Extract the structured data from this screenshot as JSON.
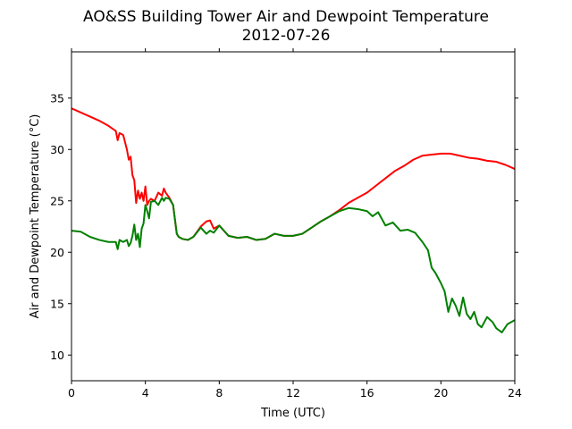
{
  "chart_data": {
    "type": "line",
    "title": "AO&SS Building Tower Air and Dewpoint Temperature",
    "subtitle": "2012-07-26",
    "xlabel": "Time (UTC)",
    "ylabel": "Air and Dewpoint Temperature (°C)",
    "xlim": [
      0,
      24
    ],
    "ylim": [
      7.5,
      39.5
    ],
    "xticks": [
      0,
      4,
      8,
      12,
      16,
      20,
      24
    ],
    "yticks": [
      10,
      15,
      20,
      25,
      30,
      35
    ],
    "grid": false,
    "series": [
      {
        "color": "#ff0000",
        "x": [
          0,
          0.5,
          1,
          1.5,
          2,
          2.4,
          2.5,
          2.6,
          2.8,
          3.0,
          3.1,
          3.2,
          3.3,
          3.4,
          3.5,
          3.6,
          3.7,
          3.8,
          3.9,
          4.0,
          4.1,
          4.2,
          4.3,
          4.5,
          4.7,
          4.9,
          5.0,
          5.1,
          5.3,
          5.5,
          5.7,
          5.8,
          6.0,
          6.3,
          6.6,
          7.0,
          7.3,
          7.5,
          7.7,
          8.0,
          8.5,
          9.0,
          9.5,
          10,
          10.5,
          11,
          11.5,
          12,
          12.5,
          13,
          13.5,
          14,
          14.5,
          15,
          15.5,
          16,
          16.5,
          17,
          17.5,
          18,
          18.5,
          19,
          19.5,
          20,
          20.5,
          21,
          21.5,
          22,
          22.5,
          23,
          23.5,
          24
        ],
        "y": [
          34.0,
          33.6,
          33.2,
          32.8,
          32.3,
          31.8,
          30.9,
          31.6,
          31.4,
          30.0,
          29.0,
          29.3,
          27.5,
          27.0,
          24.8,
          26.0,
          25.2,
          25.8,
          25.0,
          26.4,
          24.6,
          25.0,
          25.2,
          25.0,
          25.8,
          25.5,
          26.2,
          25.8,
          25.3,
          24.6,
          21.8,
          21.5,
          21.3,
          21.2,
          21.5,
          22.5,
          23.0,
          23.1,
          22.3,
          22.6,
          21.6,
          21.4,
          21.5,
          21.2,
          21.3,
          21.8,
          21.6,
          21.6,
          21.8,
          22.4,
          23.0,
          23.5,
          24.1,
          24.8,
          25.3,
          25.8,
          26.5,
          27.2,
          27.9,
          28.4,
          29.0,
          29.4,
          29.5,
          29.6,
          29.6,
          29.4,
          29.2,
          29.1,
          28.9,
          28.8,
          28.5,
          28.1
        ]
      },
      {
        "color": "#008000",
        "x": [
          0,
          0.5,
          1,
          1.5,
          2,
          2.4,
          2.5,
          2.6,
          2.8,
          3.0,
          3.1,
          3.2,
          3.3,
          3.4,
          3.5,
          3.6,
          3.7,
          3.8,
          3.9,
          4.0,
          4.1,
          4.2,
          4.3,
          4.5,
          4.7,
          4.9,
          5.0,
          5.1,
          5.3,
          5.5,
          5.7,
          5.8,
          6.0,
          6.3,
          6.6,
          7.0,
          7.3,
          7.5,
          7.7,
          8.0,
          8.5,
          9.0,
          9.5,
          10,
          10.5,
          11,
          11.5,
          12,
          12.5,
          13,
          13.5,
          14,
          14.5,
          15,
          15.5,
          16,
          16.3,
          16.6,
          17,
          17.4,
          17.8,
          18.2,
          18.6,
          19.0,
          19.3,
          19.5,
          19.7,
          20.0,
          20.2,
          20.4,
          20.6,
          20.8,
          21.0,
          21.2,
          21.4,
          21.6,
          21.8,
          22.0,
          22.2,
          22.5,
          22.8,
          23.0,
          23.3,
          23.6,
          24
        ],
        "y": [
          22.1,
          22.0,
          21.5,
          21.2,
          21.0,
          21.0,
          20.3,
          21.2,
          21.0,
          21.2,
          20.6,
          20.9,
          21.6,
          22.7,
          21.2,
          21.8,
          20.5,
          22.3,
          22.8,
          24.6,
          24.0,
          23.3,
          24.9,
          25.0,
          24.6,
          25.3,
          25.0,
          25.3,
          25.2,
          24.6,
          21.8,
          21.5,
          21.3,
          21.2,
          21.5,
          22.4,
          21.8,
          22.1,
          21.9,
          22.6,
          21.6,
          21.4,
          21.5,
          21.2,
          21.3,
          21.8,
          21.6,
          21.6,
          21.8,
          22.4,
          23.0,
          23.5,
          24.0,
          24.3,
          24.2,
          24.0,
          23.5,
          23.9,
          22.6,
          22.9,
          22.1,
          22.2,
          21.9,
          21.0,
          20.2,
          18.5,
          18.0,
          17.0,
          16.2,
          14.2,
          15.5,
          14.8,
          13.8,
          15.6,
          14.0,
          13.5,
          14.2,
          13.0,
          12.7,
          13.7,
          13.2,
          12.6,
          12.2,
          13.0,
          13.4
        ]
      }
    ]
  }
}
